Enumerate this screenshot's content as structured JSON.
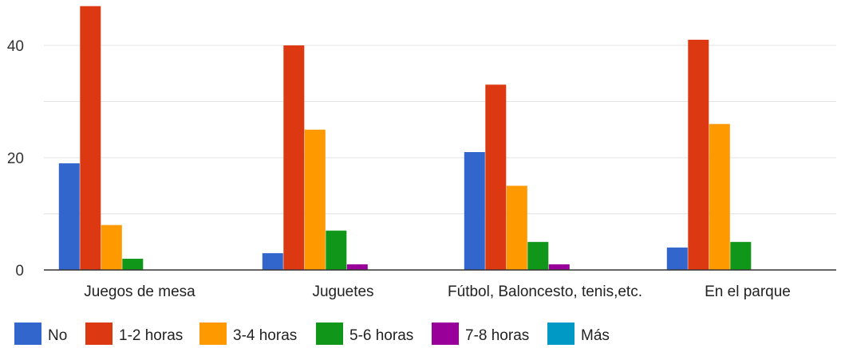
{
  "chart_data": {
    "type": "bar",
    "categories": [
      "Juegos de mesa",
      "Juguetes",
      "Fútbol, Baloncesto, tenis,etc.",
      "En el parque"
    ],
    "series": [
      {
        "name": "No",
        "color": "#3366cc",
        "values": [
          19,
          3,
          21,
          4
        ]
      },
      {
        "name": "1-2 horas",
        "color": "#dc3912",
        "values": [
          47,
          40,
          33,
          41
        ]
      },
      {
        "name": "3-4 horas",
        "color": "#ff9900",
        "values": [
          8,
          25,
          15,
          26
        ]
      },
      {
        "name": "5-6 horas",
        "color": "#109618",
        "values": [
          2,
          7,
          5,
          5
        ]
      },
      {
        "name": "7-8 horas",
        "color": "#990099",
        "values": [
          0,
          1,
          1,
          0
        ]
      },
      {
        "name": "Más",
        "color": "#0099c6",
        "values": [
          0,
          0,
          0,
          0
        ]
      }
    ],
    "yticks": [
      0,
      20,
      40
    ],
    "ylim": [
      0,
      48
    ],
    "gridlines": true,
    "legend_position": "bottom"
  }
}
